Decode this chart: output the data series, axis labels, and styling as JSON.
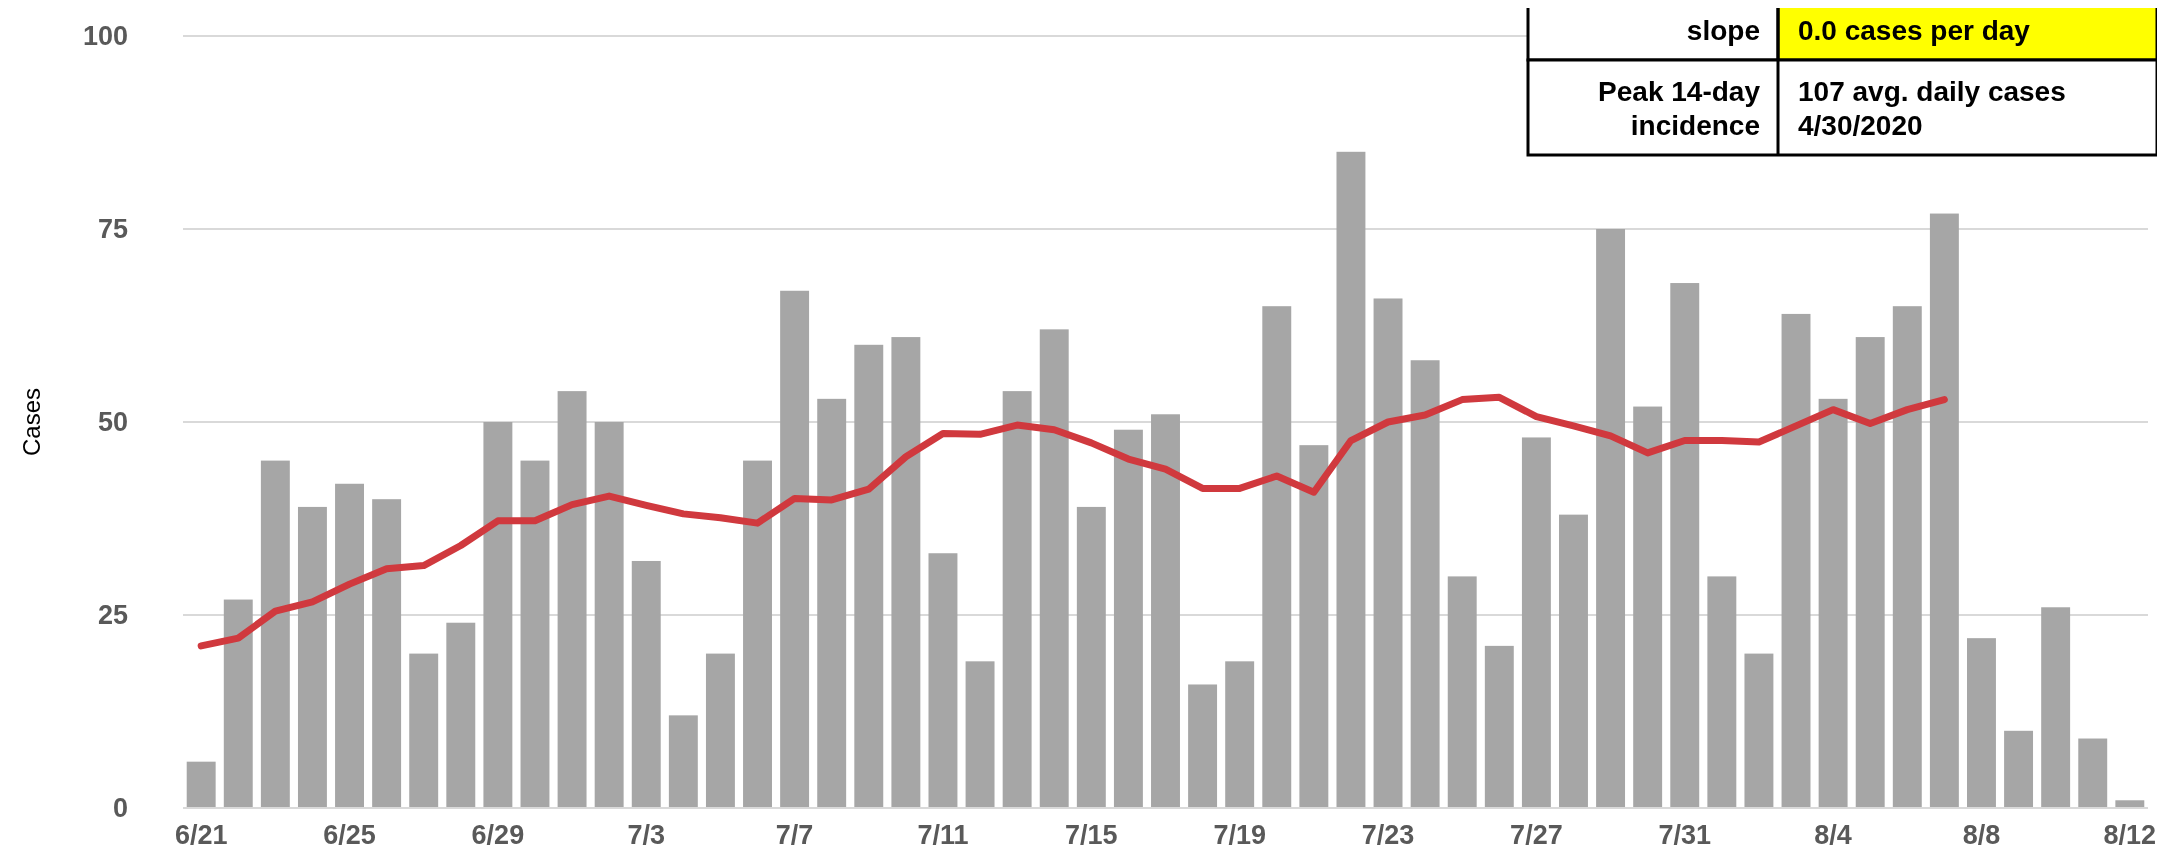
{
  "chart_data": {
    "type": "bar",
    "ylabel": "Cases",
    "categories": [
      "6/21",
      null,
      null,
      null,
      "6/25",
      null,
      null,
      null,
      "6/29",
      null,
      null,
      null,
      "7/3",
      null,
      null,
      null,
      "7/7",
      null,
      null,
      null,
      "7/11",
      null,
      null,
      null,
      "7/15",
      null,
      null,
      null,
      "7/19",
      null,
      null,
      null,
      "7/23",
      null,
      null,
      null,
      "7/27",
      null,
      null,
      null,
      "7/31",
      null,
      null,
      null,
      "8/4",
      null,
      null,
      null,
      "8/8",
      null,
      null,
      null,
      "8/12"
    ],
    "series": [
      {
        "color": "#a6a6a6",
        "values": [
          6,
          27,
          45,
          39,
          42,
          40,
          20,
          24,
          50,
          45,
          54,
          50,
          32,
          12,
          20,
          45,
          67,
          53,
          60,
          61,
          33,
          19,
          54,
          62,
          39,
          49,
          51,
          16,
          19,
          65,
          47,
          85,
          66,
          58,
          30,
          21,
          48,
          38,
          75,
          52,
          68,
          30,
          20,
          64,
          53,
          61,
          65,
          77,
          22,
          10,
          26,
          9,
          1
        ]
      },
      {
        "type": "line",
        "color": "#d0393e",
        "values": [
          21,
          22,
          25.5,
          26.7,
          29,
          31,
          31.4,
          34,
          37.2,
          37.2,
          39.3,
          40.4,
          39.2,
          38.1,
          37.6,
          36.9,
          40.1,
          39.9,
          41.3,
          45.5,
          48.5,
          48.4,
          49.6,
          49,
          47.3,
          45.2,
          43.9,
          41.4,
          41.4,
          43,
          40.9,
          47.6,
          50,
          50.9,
          52.9,
          53.2,
          50.7,
          49.5,
          48.2,
          46,
          47.6,
          47.6,
          47.4,
          49.5,
          51.6,
          49.8,
          51.6,
          52.9,
          null,
          null,
          null,
          null,
          null
        ]
      }
    ],
    "ylim": [
      0,
      100
    ],
    "yticks": [
      0,
      25,
      50,
      75,
      100
    ],
    "grid": "y",
    "marker": "none",
    "line_style": "solid",
    "annotations": [
      "slope",
      "0.0 cases per day",
      "Peak 14-day incidence",
      "107 avg. daily cases 4/30/2020"
    ]
  }
}
